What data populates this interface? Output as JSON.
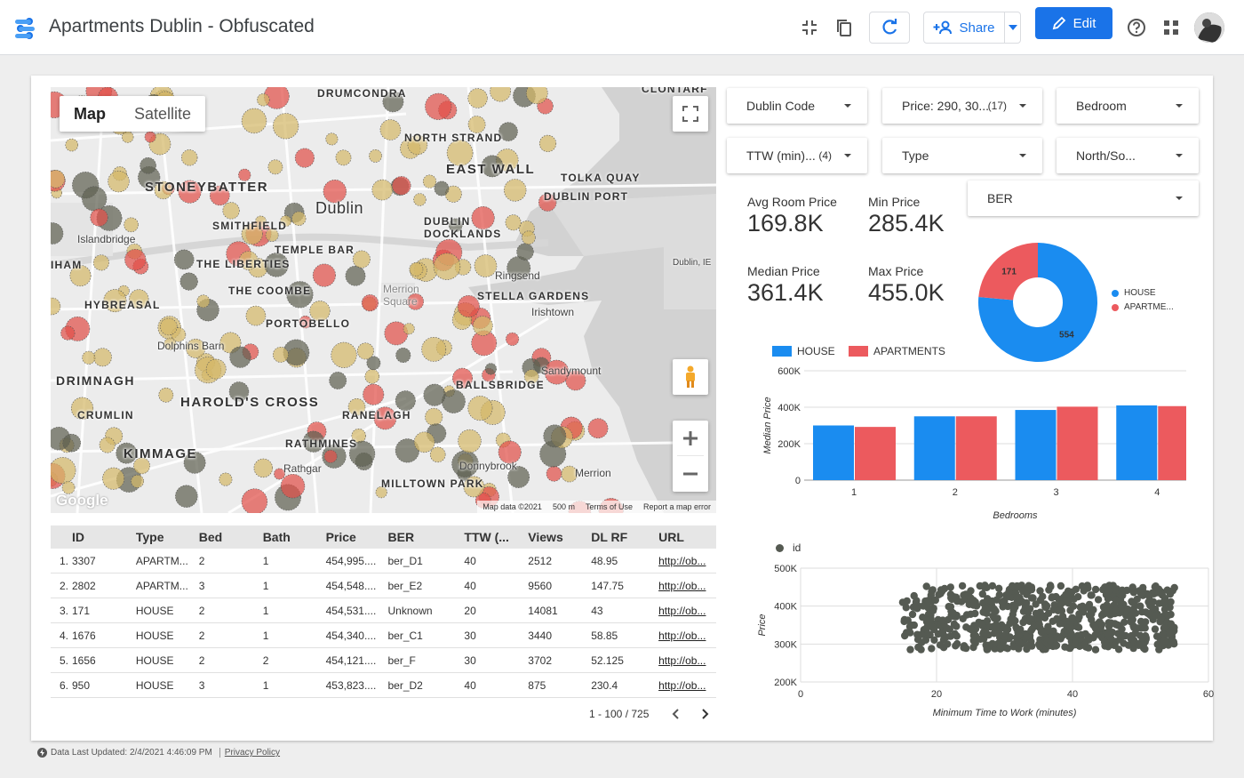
{
  "app": {
    "title": "Apartments Dublin - Obfuscated",
    "share_label": "Share",
    "edit_label": "Edit"
  },
  "map": {
    "type_map": "Map",
    "type_satellite": "Satellite",
    "places": [
      "DRUMCONDRA",
      "CLONTARF",
      "NORTH STRAND",
      "EAST WALL",
      "TOLKA QUAY",
      "DUBLIN PORT",
      "STONEYBATTER",
      "SMITHFIELD",
      "Dublin",
      "DUBLIN DOCKLANDS",
      "Islandbridge",
      "TEMPLE BAR",
      "IHAM",
      "THE LIBERTIES",
      "Ringsend",
      "THE COOMBE",
      "Merrion Square",
      "STELLA GARDENS",
      "HYBREASAL",
      "Irishtown",
      "PORTOBELLO",
      "Dolphins Barn",
      "Sandymount",
      "DRIMNAGH",
      "BALLSBRIDGE",
      "HAROLD'S CROSS",
      "RANELAGH",
      "CRUMLIN",
      "RATHMINES",
      "KIMMAGE",
      "Rathgar",
      "Donnybrook",
      "Merrion",
      "MILLTOWN PARK",
      "Dublin, IE"
    ],
    "footer_data": "Map data ©2021",
    "footer_scale": "500 m",
    "footer_terms": "Terms of Use",
    "footer_report": "Report a map error",
    "google_label": "Google"
  },
  "table": {
    "headers": [
      "ID",
      "Type",
      "Bed",
      "Bath",
      "Price",
      "BER",
      "TTW (...",
      "Views",
      "DL RF",
      "URL"
    ],
    "rows": [
      {
        "n": "1.",
        "id": "3307",
        "type": "APARTM...",
        "bed": "2",
        "bath": "1",
        "price": "454,995....",
        "ber": "ber_D1",
        "ttw": "40",
        "views": "2512",
        "dlrf": "48.95",
        "url": "http://ob..."
      },
      {
        "n": "2.",
        "id": "2802",
        "type": "APARTM...",
        "bed": "3",
        "bath": "1",
        "price": "454,548....",
        "ber": "ber_E2",
        "ttw": "40",
        "views": "9560",
        "dlrf": "147.75",
        "url": "http://ob..."
      },
      {
        "n": "3.",
        "id": "171",
        "type": "HOUSE",
        "bed": "2",
        "bath": "1",
        "price": "454,531....",
        "ber": "Unknown",
        "ttw": "20",
        "views": "14081",
        "dlrf": "43",
        "url": "http://ob..."
      },
      {
        "n": "4.",
        "id": "1676",
        "type": "HOUSE",
        "bed": "2",
        "bath": "1",
        "price": "454,340....",
        "ber": "ber_C1",
        "ttw": "30",
        "views": "3440",
        "dlrf": "58.85",
        "url": "http://ob..."
      },
      {
        "n": "5.",
        "id": "1656",
        "type": "HOUSE",
        "bed": "2",
        "bath": "2",
        "price": "454,121....",
        "ber": "ber_F",
        "ttw": "30",
        "views": "3702",
        "dlrf": "52.125",
        "url": "http://ob..."
      },
      {
        "n": "6.",
        "id": "950",
        "type": "HOUSE",
        "bed": "3",
        "bath": "1",
        "price": "453,823....",
        "ber": "ber_D2",
        "ttw": "40",
        "views": "875",
        "dlrf": "230.4",
        "url": "http://ob..."
      }
    ],
    "pager": "1 - 100 / 725"
  },
  "filters": [
    {
      "label": "Dublin Code",
      "count": ""
    },
    {
      "label": "Price: 290, 30...",
      "count": "(17)"
    },
    {
      "label": "Bedroom",
      "count": ""
    },
    {
      "label": "TTW (min)...",
      "count": "(4)"
    },
    {
      "label": "Type",
      "count": ""
    },
    {
      "label": "North/So...",
      "count": ""
    },
    {
      "label": "BER",
      "count": ""
    }
  ],
  "kpis": [
    {
      "label": "Avg Room Price",
      "value": "169.8K"
    },
    {
      "label": "Min Price",
      "value": "285.4K"
    },
    {
      "label": "Median Price",
      "value": "361.4K"
    },
    {
      "label": "Max Price",
      "value": "455.0K"
    }
  ],
  "colors": {
    "house": "#1a8cf0",
    "apartments": "#ec5a5e",
    "scatter": "#555a52",
    "accent": "#1a73e8"
  },
  "chart_data": [
    {
      "type": "pie",
      "labels": [
        "HOUSE",
        "APARTME..."
      ],
      "values": [
        554,
        171
      ],
      "donut": true,
      "legend": "right"
    },
    {
      "type": "bar",
      "categories": [
        "1",
        "2",
        "3",
        "4"
      ],
      "series": [
        {
          "name": "HOUSE",
          "values": [
            300000,
            350000,
            385000,
            410000
          ]
        },
        {
          "name": "APARTMENTS",
          "values": [
            292000,
            350000,
            403000,
            406000
          ]
        }
      ],
      "xlabel": "Bedrooms",
      "ylabel": "Median Price",
      "ylim": [
        0,
        600000
      ],
      "yticks": [
        "0",
        "200K",
        "400K",
        "600K"
      ],
      "legend": "top-left",
      "grid": true
    },
    {
      "type": "scatter",
      "series_name": "id",
      "xlabel": "Minimum Time to Work (minutes)",
      "ylabel": "Price",
      "xlim": [
        0,
        60
      ],
      "ylim": [
        200000,
        500000
      ],
      "xticks": [
        "0",
        "20",
        "40",
        "60"
      ],
      "yticks": [
        "200K",
        "300K",
        "400K",
        "500K"
      ],
      "x_range_data": [
        15,
        55
      ],
      "y_range_data": [
        285000,
        455000
      ],
      "legend": "top-left",
      "grid": true
    }
  ],
  "footer": {
    "updated": "Data Last Updated: 2/4/2021 4:46:09 PM",
    "privacy": "Privacy Policy"
  }
}
